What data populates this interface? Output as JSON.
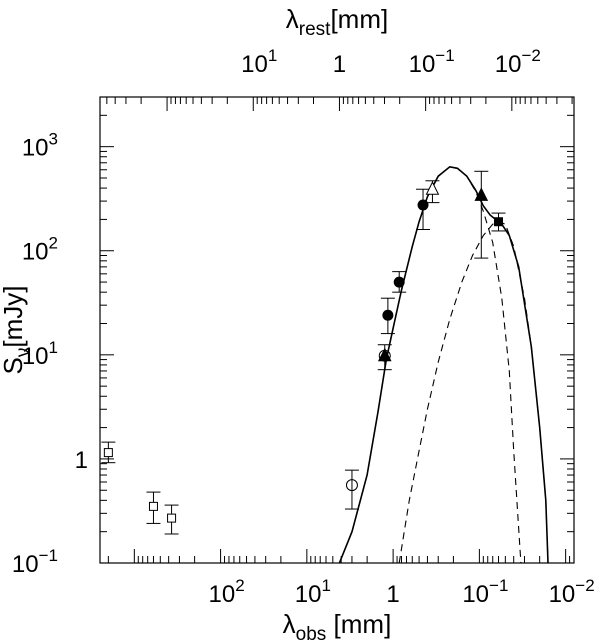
{
  "chart_data": {
    "type": "scatter",
    "x_scale": "log",
    "y_scale": "log",
    "x_reversed": true,
    "xlim": [
      2500,
      0.008
    ],
    "ylim": [
      0.1,
      3000
    ],
    "top_xlim": [
      600,
      0.0019
    ],
    "xlabel": {
      "base": "λ",
      "sub": "obs",
      "rest": " [mm]"
    },
    "ylabel": {
      "base": "S",
      "sub": "ν",
      "rest": "[mJy]"
    },
    "top_xlabel": {
      "base": "λ",
      "sub": "rest",
      "rest": "[mm]"
    },
    "x_ticks": [
      {
        "value": 100,
        "mantissa": "10",
        "exp": "2"
      },
      {
        "value": 10,
        "mantissa": "10",
        "exp": "1"
      },
      {
        "value": 1,
        "mantissa": "1",
        "exp": ""
      },
      {
        "value": 0.1,
        "mantissa": "10",
        "exp": "−1"
      },
      {
        "value": 0.01,
        "mantissa": "10",
        "exp": "−2"
      }
    ],
    "top_x_ticks": [
      {
        "value": 10,
        "mantissa": "10",
        "exp": "1"
      },
      {
        "value": 1,
        "mantissa": "1",
        "exp": ""
      },
      {
        "value": 0.1,
        "mantissa": "10",
        "exp": "−1"
      },
      {
        "value": 0.01,
        "mantissa": "10",
        "exp": "−2"
      }
    ],
    "y_ticks": [
      {
        "value": 1000,
        "mantissa": "10",
        "exp": "3"
      },
      {
        "value": 100,
        "mantissa": "10",
        "exp": "2"
      },
      {
        "value": 10,
        "mantissa": "10",
        "exp": "1"
      },
      {
        "value": 1,
        "mantissa": "1",
        "exp": ""
      },
      {
        "value": 0.1,
        "mantissa": "10",
        "exp": "−1"
      }
    ],
    "series": [
      {
        "marker": "open-square",
        "points": [
          {
            "x": 2000,
            "y": 1.15,
            "ylo": 0.92,
            "yhi": 1.45
          },
          {
            "x": 600,
            "y": 0.35,
            "ylo": 0.24,
            "yhi": 0.48
          },
          {
            "x": 370,
            "y": 0.27,
            "ylo": 0.19,
            "yhi": 0.36
          }
        ]
      },
      {
        "marker": "open-circle",
        "points": [
          {
            "x": 3.0,
            "y": 0.56,
            "ylo": 0.33,
            "yhi": 0.78
          }
        ]
      },
      {
        "marker": "filled-triangle",
        "points": [
          {
            "x": 1.25,
            "y": 9.8,
            "ylo": 7.2,
            "yhi": 12.5
          },
          {
            "x": 0.095,
            "y": 340,
            "ylo": 85,
            "yhi": 580
          }
        ]
      },
      {
        "marker": "open-circle",
        "points": [
          {
            "x": 1.25,
            "y": 9.8
          }
        ]
      },
      {
        "marker": "filled-circle",
        "points": [
          {
            "x": 1.15,
            "y": 24,
            "ylo": 16,
            "yhi": 35
          },
          {
            "x": 0.85,
            "y": 50,
            "ylo": 40,
            "yhi": 63
          },
          {
            "x": 0.45,
            "y": 275,
            "ylo": 160,
            "yhi": 390
          }
        ]
      },
      {
        "marker": "open-triangle",
        "points": [
          {
            "x": 0.35,
            "y": 390,
            "ylo": 290,
            "yhi": 470
          }
        ]
      },
      {
        "marker": "filled-square",
        "points": [
          {
            "x": 0.06,
            "y": 190,
            "ylo": 155,
            "yhi": 230
          }
        ]
      }
    ],
    "curves": [
      {
        "style": "solid",
        "points": [
          [
            4.2,
            0.1
          ],
          [
            3.0,
            0.2
          ],
          [
            2.0,
            0.7
          ],
          [
            1.5,
            2.8
          ],
          [
            1.2,
            9.0
          ],
          [
            1.0,
            18
          ],
          [
            0.8,
            42
          ],
          [
            0.6,
            110
          ],
          [
            0.5,
            190
          ],
          [
            0.4,
            330
          ],
          [
            0.3,
            520
          ],
          [
            0.22,
            640
          ],
          [
            0.18,
            620
          ],
          [
            0.14,
            520
          ],
          [
            0.11,
            380
          ],
          [
            0.09,
            270
          ],
          [
            0.075,
            220
          ],
          [
            0.065,
            200
          ],
          [
            0.055,
            180
          ],
          [
            0.045,
            140
          ],
          [
            0.035,
            70
          ],
          [
            0.025,
            12
          ],
          [
            0.02,
            2.0
          ],
          [
            0.017,
            0.4
          ],
          [
            0.016,
            0.1
          ]
        ]
      },
      {
        "style": "dashed",
        "points": [
          [
            4.2,
            0.1
          ],
          [
            3.0,
            0.2
          ],
          [
            2.0,
            0.7
          ],
          [
            1.5,
            2.8
          ],
          [
            1.2,
            9.0
          ],
          [
            1.0,
            18
          ],
          [
            0.8,
            42
          ],
          [
            0.6,
            110
          ],
          [
            0.5,
            190
          ],
          [
            0.4,
            330
          ],
          [
            0.3,
            520
          ],
          [
            0.22,
            640
          ],
          [
            0.18,
            620
          ],
          [
            0.14,
            520
          ],
          [
            0.11,
            370
          ],
          [
            0.09,
            240
          ],
          [
            0.07,
            120
          ],
          [
            0.055,
            35
          ],
          [
            0.045,
            7
          ],
          [
            0.04,
            1.2
          ],
          [
            0.036,
            0.3
          ],
          [
            0.033,
            0.1
          ]
        ]
      },
      {
        "style": "dashed",
        "points": [
          [
            0.85,
            0.1
          ],
          [
            0.65,
            0.4
          ],
          [
            0.5,
            1.2
          ],
          [
            0.4,
            3.0
          ],
          [
            0.3,
            8.5
          ],
          [
            0.22,
            22
          ],
          [
            0.16,
            50
          ],
          [
            0.12,
            90
          ],
          [
            0.09,
            140
          ],
          [
            0.07,
            180
          ],
          [
            0.06,
            190
          ],
          [
            0.05,
            180
          ],
          [
            0.04,
            110
          ],
          [
            0.03,
            35
          ],
          [
            0.025,
            12
          ],
          [
            0.02,
            2.0
          ],
          [
            0.017,
            0.4
          ],
          [
            0.016,
            0.1
          ]
        ]
      }
    ]
  }
}
